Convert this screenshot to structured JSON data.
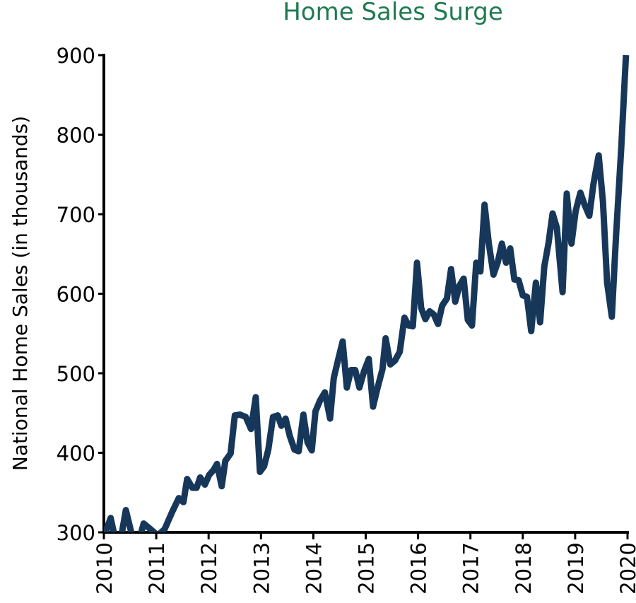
{
  "chart_data": {
    "type": "line",
    "title": "Home Sales Surge",
    "ylabel": "National Home Sales (in thousands)",
    "xlim": [
      2010,
      2020
    ],
    "xticks": [
      2010,
      2011,
      2012,
      2013,
      2014,
      2015,
      2016,
      2017,
      2018,
      2019,
      2020
    ],
    "ylim": [
      300,
      900
    ],
    "yticks": [
      300,
      400,
      500,
      600,
      700,
      800,
      900
    ],
    "series": [
      {
        "color": "#16375a",
        "x": [
          2010.0,
          2010.13,
          2010.24,
          2010.34,
          2010.42,
          2010.53,
          2010.65,
          2010.76,
          2010.89,
          2011.03,
          2011.16,
          2011.3,
          2011.43,
          2011.52,
          2011.59,
          2011.69,
          2011.77,
          2011.84,
          2011.93,
          2012.01,
          2012.09,
          2012.16,
          2012.25,
          2012.32,
          2012.42,
          2012.5,
          2012.6,
          2012.71,
          2012.81,
          2012.9,
          2012.98,
          2013.06,
          2013.14,
          2013.23,
          2013.32,
          2013.39,
          2013.47,
          2013.55,
          2013.64,
          2013.72,
          2013.81,
          2013.89,
          2013.97,
          2014.04,
          2014.13,
          2014.22,
          2014.32,
          2014.39,
          2014.47,
          2014.56,
          2014.64,
          2014.72,
          2014.8,
          2014.88,
          2014.97,
          2015.06,
          2015.14,
          2015.22,
          2015.32,
          2015.38,
          2015.47,
          2015.56,
          2015.65,
          2015.74,
          2015.82,
          2015.9,
          2015.98,
          2016.06,
          2016.14,
          2016.22,
          2016.3,
          2016.38,
          2016.46,
          2016.55,
          2016.63,
          2016.71,
          2016.79,
          2016.87,
          2016.95,
          2017.03,
          2017.11,
          2017.19,
          2017.27,
          2017.35,
          2017.44,
          2017.52,
          2017.6,
          2017.68,
          2017.76,
          2017.84,
          2017.92,
          2018.0,
          2018.08,
          2018.16,
          2018.25,
          2018.33,
          2018.41,
          2018.49,
          2018.57,
          2018.65,
          2018.76,
          2018.84,
          2018.93,
          2019.01,
          2019.1,
          2019.18,
          2019.27,
          2019.35,
          2019.45,
          2019.53,
          2019.61,
          2019.7,
          2019.78,
          2019.88,
          2019.97
        ],
        "values": [
          294,
          318,
          285,
          298,
          328,
          298,
          285,
          311,
          304,
          296,
          304,
          325,
          343,
          338,
          367,
          356,
          356,
          369,
          360,
          372,
          378,
          386,
          358,
          390,
          399,
          447,
          448,
          445,
          430,
          470,
          376,
          383,
          404,
          445,
          447,
          434,
          443,
          421,
          404,
          402,
          448,
          413,
          403,
          452,
          466,
          476,
          443,
          494,
          516,
          540,
          482,
          504,
          504,
          482,
          503,
          518,
          458,
          480,
          505,
          544,
          511,
          516,
          527,
          570,
          560,
          559,
          639,
          582,
          568,
          578,
          574,
          562,
          585,
          594,
          631,
          590,
          610,
          619,
          567,
          560,
          639,
          628,
          712,
          664,
          624,
          639,
          663,
          639,
          657,
          618,
          617,
          598,
          596,
          553,
          614,
          564,
          634,
          663,
          701,
          683,
          602,
          726,
          663,
          704,
          727,
          712,
          698,
          738,
          774,
          716,
          614,
          571,
          672,
          783,
          900
        ]
      }
    ]
  }
}
